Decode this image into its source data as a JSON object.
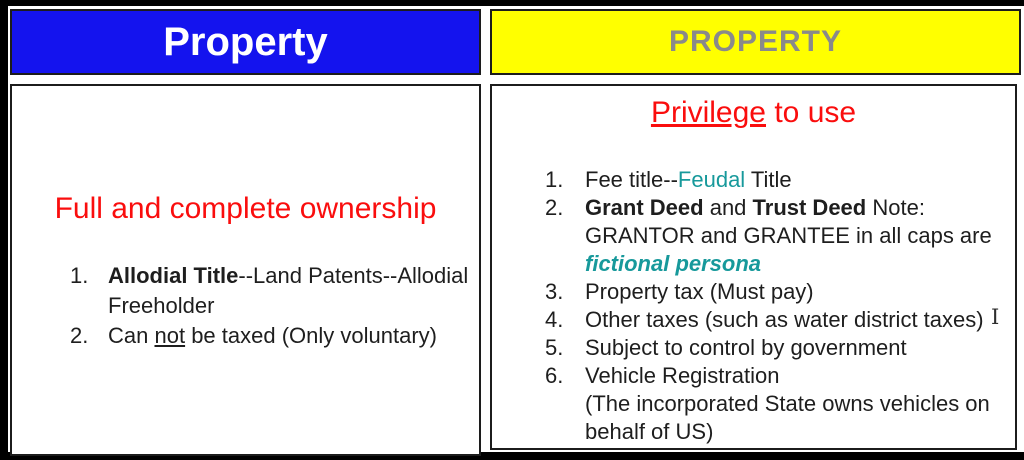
{
  "colors": {
    "blue": "#1413EE",
    "yellow": "#FFFF00",
    "gray": "#8A8A8A",
    "red": "#FA0D0D",
    "teal": "#17999B",
    "text": "#1E1E1E"
  },
  "left_panel": {
    "header_title": "Property",
    "heading": "Full and complete ownership",
    "items": [
      {
        "segments": [
          {
            "t": "Allodial Title",
            "b": true
          },
          {
            "t": "--Land Patents--Allodial"
          },
          {
            "br": true
          },
          {
            "t": "Freeholder"
          }
        ]
      },
      {
        "segments": [
          {
            "t": "Can "
          },
          {
            "t": "not",
            "u": true
          },
          {
            "t": " be taxed (Only voluntary)"
          }
        ]
      }
    ]
  },
  "right_panel": {
    "header_title": "PROPERTY",
    "heading_segments": [
      {
        "t": "Privilege",
        "u": true
      },
      {
        "t": " to use"
      }
    ],
    "items": [
      {
        "segments": [
          {
            "t": "Fee title--"
          },
          {
            "t": "Feudal",
            "c": "teal"
          },
          {
            "t": " Title"
          }
        ]
      },
      {
        "segments": [
          {
            "t": "Grant Deed",
            "b": true
          },
          {
            "t": " and "
          },
          {
            "t": "Trust Deed",
            "b": true
          },
          {
            "t": " Note:"
          },
          {
            "br": true
          },
          {
            "t": "GRANTOR and GRANTEE in all caps are"
          },
          {
            "br": true
          },
          {
            "t": "fictional persona",
            "c": "teal",
            "b": true,
            "i": true
          }
        ]
      },
      {
        "segments": [
          {
            "t": "Property tax (Must pay)"
          }
        ]
      },
      {
        "segments": [
          {
            "t": "Other taxes (such as water district taxes)"
          }
        ]
      },
      {
        "segments": [
          {
            "t": "Subject to control by government"
          }
        ]
      },
      {
        "segments": [
          {
            "t": "Vehicle Registration"
          },
          {
            "br": true
          },
          {
            "t": "(The incorporated State owns vehicles on"
          },
          {
            "br": true
          },
          {
            "t": "behalf of US)"
          }
        ]
      }
    ]
  },
  "cursor": {
    "glyph": "I"
  }
}
